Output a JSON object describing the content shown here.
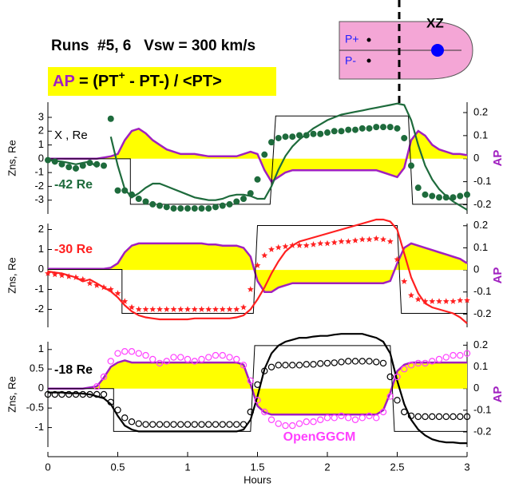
{
  "header": {
    "title": "Runs  #5, 6   Vsw = 300 km/s",
    "formula": {
      "lhs": "AP",
      "rhs_start": " = (PT",
      "sup": "+",
      "rhs_end": " - PT-) / <PT>"
    }
  },
  "inset": {
    "plane": "XZ",
    "p_plus": "P+",
    "p_minus": "P-"
  },
  "chart_data": [
    {
      "type": "line",
      "label": "-42 Re",
      "label_color": "#1e6b3c",
      "annotation": "X , Re",
      "ylabel": "Zns, Re",
      "y2label": "AP",
      "xlim": [
        0,
        3
      ],
      "ylim": [
        -4,
        4.1
      ],
      "yticks": [
        -3,
        -2,
        -1,
        0,
        1,
        2,
        3
      ],
      "y2lim": [
        -0.24,
        0.245
      ],
      "y2ticks": [
        -0.2,
        -0.1,
        0,
        0.1,
        0.2
      ],
      "x": [
        0,
        0.05,
        0.1,
        0.15,
        0.2,
        0.25,
        0.3,
        0.35,
        0.4,
        0.45,
        0.5,
        0.55,
        0.6,
        0.65,
        0.7,
        0.75,
        0.8,
        0.85,
        0.9,
        0.95,
        1,
        1.05,
        1.1,
        1.15,
        1.2,
        1.25,
        1.3,
        1.35,
        1.4,
        1.45,
        1.5,
        1.55,
        1.6,
        1.65,
        1.7,
        1.75,
        1.8,
        1.85,
        1.9,
        1.95,
        2,
        2.05,
        2.1,
        2.15,
        2.2,
        2.25,
        2.3,
        2.35,
        2.4,
        2.45,
        2.5,
        2.55,
        2.6,
        2.65,
        2.7,
        2.75,
        2.8,
        2.85,
        2.9,
        2.95,
        3
      ],
      "series": [
        {
          "style": "area",
          "axis": "y2",
          "color": "#a020c0",
          "fill": "#ffff00",
          "values": [
            0,
            0,
            0,
            0,
            0,
            0,
            0,
            0,
            0.005,
            0.01,
            0.02,
            0.08,
            0.12,
            0.13,
            0.11,
            0.08,
            0.06,
            0.04,
            0.03,
            0.02,
            0.02,
            0.02,
            0.015,
            0.01,
            0.01,
            0.01,
            0.01,
            0.01,
            0.02,
            0.03,
            0.02,
            -0.05,
            -0.1,
            -0.08,
            -0.06,
            -0.05,
            -0.05,
            -0.05,
            -0.05,
            -0.05,
            -0.05,
            -0.05,
            -0.05,
            -0.05,
            -0.05,
            -0.05,
            -0.05,
            -0.05,
            -0.06,
            -0.07,
            -0.08,
            -0.04,
            0.08,
            0.12,
            0.1,
            0.06,
            0.04,
            0.03,
            0.02,
            0.02,
            0.015
          ]
        },
        {
          "style": "step",
          "color": "#000000",
          "x": [
            0,
            0.59,
            0.59,
            1.59,
            1.63,
            2.58,
            2.61,
            3
          ],
          "values": [
            0,
            0,
            -3.3,
            -3.3,
            3.1,
            3.1,
            -3.3,
            -3.3
          ]
        },
        {
          "style": "line",
          "color": "#1e6b3c",
          "values": [
            -0.1,
            -0.15,
            -0.2,
            -0.3,
            -0.4,
            -0.3,
            -0.2,
            -0.6,
            null,
            1.6,
            -0.5,
            -2.2,
            -2.8,
            -2.5,
            -2.1,
            -1.8,
            -1.8,
            -2.0,
            -2.2,
            -2.4,
            -2.6,
            -2.8,
            -2.9,
            -3.0,
            -3.0,
            -2.9,
            -2.7,
            -2.6,
            -2.6,
            -2.7,
            -2.9,
            -2.9,
            -2.0,
            -0.8,
            0.2,
            0.9,
            1.4,
            1.8,
            2.2,
            2.5,
            2.8,
            3.0,
            3.2,
            3.3,
            3.4,
            3.5,
            3.6,
            3.7,
            3.8,
            3.9,
            4.0,
            3.9,
            2.8,
            1.0,
            -0.5,
            -1.5,
            -2.2,
            -2.7,
            -3.1,
            -3.4,
            -3.7
          ]
        },
        {
          "style": "markers",
          "marker": "circle",
          "filled": true,
          "color": "#1e6b3c",
          "values": [
            -0.1,
            -0.2,
            -0.4,
            -0.6,
            -0.7,
            -0.5,
            -0.3,
            -0.4,
            -0.5,
            2.9,
            -2.3,
            -2.3,
            -2.6,
            -2.9,
            -3.1,
            -3.3,
            -3.4,
            -3.5,
            -3.6,
            -3.6,
            -3.6,
            -3.6,
            -3.6,
            -3.6,
            -3.5,
            -3.4,
            -3.3,
            -3.1,
            -2.9,
            -2.5,
            -1.5,
            0.3,
            1.2,
            1.5,
            1.6,
            1.6,
            1.7,
            1.7,
            1.8,
            1.8,
            1.9,
            2.0,
            2.0,
            2.1,
            2.1,
            2.2,
            2.2,
            2.3,
            2.3,
            2.3,
            2.2,
            1.5,
            -0.5,
            -2.1,
            -2.6,
            -2.7,
            -2.8,
            -2.8,
            -2.8,
            -2.7,
            -2.6
          ]
        }
      ]
    },
    {
      "type": "line",
      "label": "-30 Re",
      "label_color": "#ff2020",
      "ylabel": "Zns, Re",
      "y2label": "AP",
      "xlim": [
        0,
        3
      ],
      "ylim": [
        -2.9,
        2.3
      ],
      "yticks": [
        -2,
        -1,
        0,
        1,
        2
      ],
      "y2lim": [
        -0.26,
        0.21
      ],
      "y2ticks": [
        -0.2,
        -0.1,
        0,
        0.1,
        0.2
      ],
      "x": [
        0,
        0.05,
        0.1,
        0.15,
        0.2,
        0.25,
        0.3,
        0.35,
        0.4,
        0.45,
        0.5,
        0.55,
        0.6,
        0.65,
        0.7,
        0.75,
        0.8,
        0.85,
        0.9,
        0.95,
        1,
        1.05,
        1.1,
        1.15,
        1.2,
        1.25,
        1.3,
        1.35,
        1.4,
        1.45,
        1.5,
        1.55,
        1.6,
        1.65,
        1.7,
        1.75,
        1.8,
        1.85,
        1.9,
        1.95,
        2,
        2.05,
        2.1,
        2.15,
        2.2,
        2.25,
        2.3,
        2.35,
        2.4,
        2.45,
        2.5,
        2.55,
        2.6,
        2.65,
        2.7,
        2.75,
        2.8,
        2.85,
        2.9,
        2.95,
        3
      ],
      "series": [
        {
          "style": "area",
          "axis": "y2",
          "color": "#a020c0",
          "fill": "#ffff00",
          "values": [
            0.005,
            0.005,
            0.005,
            0.005,
            0.005,
            0.005,
            0.005,
            0.005,
            0.005,
            0.01,
            0.03,
            0.08,
            0.11,
            0.12,
            0.12,
            0.12,
            0.12,
            0.12,
            0.12,
            0.12,
            0.12,
            0.12,
            0.12,
            0.115,
            0.115,
            0.11,
            0.11,
            0.11,
            0.1,
            0.06,
            -0.05,
            -0.1,
            -0.1,
            -0.08,
            -0.07,
            -0.06,
            -0.06,
            -0.06,
            -0.06,
            -0.06,
            -0.06,
            -0.06,
            -0.06,
            -0.06,
            -0.06,
            -0.06,
            -0.06,
            -0.06,
            -0.06,
            -0.05,
            0.03,
            0.1,
            0.12,
            0.11,
            0.1,
            0.09,
            0.08,
            0.07,
            0.06,
            0.05,
            0.03
          ]
        },
        {
          "style": "step",
          "color": "#000000",
          "x": [
            0,
            0.53,
            0.53,
            1.47,
            1.5,
            2.5,
            2.53,
            3
          ],
          "values": [
            0,
            0,
            -2.2,
            -2.2,
            2.2,
            2.2,
            -2.2,
            -2.2
          ]
        },
        {
          "style": "line",
          "color": "#ff2020",
          "values": [
            -0.1,
            -0.15,
            -0.2,
            -0.3,
            -0.4,
            -0.6,
            -0.5,
            -0.7,
            -0.9,
            -1.1,
            -1.4,
            -1.8,
            -2.1,
            -2.3,
            -2.4,
            -2.45,
            -2.5,
            -2.5,
            -2.5,
            -2.5,
            -2.5,
            -2.45,
            -2.45,
            -2.45,
            -2.45,
            -2.45,
            -2.45,
            -2.4,
            -2.3,
            -2.0,
            -1.5,
            -0.9,
            -0.2,
            0.4,
            0.9,
            1.2,
            1.4,
            1.5,
            1.6,
            1.7,
            1.8,
            1.9,
            2.0,
            2.1,
            2.2,
            2.3,
            2.4,
            2.5,
            2.5,
            2.4,
            2.0,
            0.8,
            -0.4,
            -1.2,
            -1.7,
            -1.9,
            -2.0,
            -2.1,
            -2.2,
            -2.4,
            -2.7
          ]
        },
        {
          "style": "markers",
          "marker": "star",
          "filled": true,
          "color": "#ff2020",
          "values": [
            -0.2,
            -0.25,
            -0.3,
            -0.35,
            -0.4,
            -0.5,
            -0.7,
            -0.8,
            -0.9,
            -1.0,
            -1.2,
            -1.6,
            -1.9,
            -2.0,
            -2.0,
            -2.0,
            -2.0,
            -2.0,
            -2.0,
            -2.0,
            -2.0,
            -2.0,
            -2.0,
            -2.0,
            -2.0,
            -2.0,
            -2.0,
            -2.0,
            -1.9,
            -1.0,
            0.2,
            0.7,
            1.0,
            1.1,
            1.15,
            1.2,
            1.2,
            1.2,
            1.25,
            1.3,
            1.3,
            1.35,
            1.4,
            1.4,
            1.45,
            1.5,
            1.5,
            1.55,
            1.5,
            1.4,
            0.5,
            -0.6,
            -1.3,
            -1.5,
            -1.6,
            -1.6,
            -1.6,
            -1.6,
            -1.6,
            -1.55,
            -1.55
          ]
        }
      ]
    },
    {
      "type": "line",
      "label": "-18 Re",
      "label_color": "#000000",
      "ylabel": "Zns, Re",
      "y2label": "AP",
      "xlabel": "Hours",
      "xlim": [
        0,
        3
      ],
      "xticks": [
        0,
        0.5,
        1,
        1.5,
        2,
        2.5,
        3
      ],
      "ylim": [
        -1.5,
        1.2
      ],
      "yticks": [
        -1,
        -0.5,
        0,
        0.5,
        1
      ],
      "y2lim": [
        -0.27,
        0.216
      ],
      "y2ticks": [
        -0.2,
        -0.1,
        0,
        0.1,
        0.2
      ],
      "x": [
        0,
        0.05,
        0.1,
        0.15,
        0.2,
        0.25,
        0.3,
        0.35,
        0.4,
        0.45,
        0.5,
        0.55,
        0.6,
        0.65,
        0.7,
        0.75,
        0.8,
        0.85,
        0.9,
        0.95,
        1,
        1.05,
        1.1,
        1.15,
        1.2,
        1.25,
        1.3,
        1.35,
        1.4,
        1.45,
        1.5,
        1.55,
        1.6,
        1.65,
        1.7,
        1.75,
        1.8,
        1.85,
        1.9,
        1.95,
        2,
        2.05,
        2.1,
        2.15,
        2.2,
        2.25,
        2.3,
        2.35,
        2.4,
        2.45,
        2.5,
        2.55,
        2.6,
        2.65,
        2.7,
        2.75,
        2.8,
        2.85,
        2.9,
        2.95,
        3
      ],
      "series": [
        {
          "style": "area",
          "axis": "y2",
          "color": "#a020c0",
          "fill": "#ffff00",
          "values": [
            0,
            0,
            0,
            0,
            0,
            0,
            0.005,
            0.01,
            0.05,
            0.1,
            0.12,
            0.13,
            0.12,
            0.12,
            0.12,
            0.12,
            0.12,
            0.12,
            0.12,
            0.12,
            0.12,
            0.12,
            0.12,
            0.12,
            0.12,
            0.12,
            0.12,
            0.12,
            0.11,
            0.02,
            -0.08,
            -0.11,
            -0.12,
            -0.12,
            -0.12,
            -0.12,
            -0.12,
            -0.12,
            -0.12,
            -0.12,
            -0.12,
            -0.12,
            -0.12,
            -0.12,
            -0.12,
            -0.12,
            -0.12,
            -0.12,
            -0.1,
            -0.02,
            0.08,
            0.11,
            0.12,
            0.12,
            0.12,
            0.12,
            0.12,
            0.12,
            0.12,
            0.12,
            0.12
          ]
        },
        {
          "style": "step",
          "color": "#000000",
          "x": [
            0,
            0.47,
            0.47,
            1.45,
            1.48,
            2.45,
            2.48,
            3
          ],
          "values": [
            0,
            0,
            -1.1,
            -1.1,
            1.1,
            1.1,
            -1.1,
            -1.1
          ]
        },
        {
          "style": "line",
          "color": "#000000",
          "values": [
            -0.1,
            -0.1,
            -0.1,
            -0.12,
            -0.12,
            -0.13,
            -0.15,
            -0.2,
            -0.25,
            -0.4,
            -0.7,
            -0.95,
            -1.05,
            -1.1,
            -1.1,
            -1.1,
            -1.1,
            -1.1,
            -1.1,
            -1.1,
            -1.1,
            -1.1,
            -1.1,
            -1.1,
            -1.1,
            -1.1,
            -1.1,
            -1.1,
            -1.05,
            -0.8,
            -0.2,
            0.5,
            0.9,
            1.1,
            1.2,
            1.25,
            1.3,
            1.3,
            1.33,
            1.35,
            1.35,
            1.38,
            1.4,
            1.4,
            1.4,
            1.4,
            1.35,
            1.3,
            1.2,
            0.9,
            0.2,
            -0.4,
            -0.8,
            -1.05,
            -1.2,
            -1.3,
            -1.35,
            -1.38,
            -1.38,
            -1.4,
            -1.4
          ]
        },
        {
          "style": "markers",
          "marker": "circle",
          "filled": false,
          "color": "#000000",
          "values": [
            -0.15,
            -0.15,
            -0.15,
            -0.15,
            -0.15,
            -0.15,
            -0.15,
            -0.15,
            -0.15,
            -0.35,
            -0.55,
            -0.75,
            -0.85,
            -0.9,
            -0.92,
            -0.92,
            -0.92,
            -0.92,
            -0.92,
            -0.92,
            -0.92,
            -0.92,
            -0.92,
            -0.92,
            -0.92,
            -0.92,
            -0.92,
            -0.92,
            -0.92,
            -0.6,
            0.1,
            0.45,
            0.55,
            0.6,
            0.6,
            0.6,
            0.6,
            0.62,
            0.62,
            0.64,
            0.65,
            0.66,
            0.68,
            0.7,
            0.7,
            0.7,
            0.7,
            0.68,
            0.65,
            0.3,
            -0.3,
            -0.6,
            -0.7,
            -0.72,
            -0.72,
            -0.72,
            -0.72,
            -0.72,
            -0.72,
            -0.72,
            -0.72
          ]
        },
        {
          "style": "markers",
          "marker": "circle",
          "filled": false,
          "name": "OpenGGCM",
          "color": "#ff40ff",
          "values": [
            null,
            null,
            null,
            null,
            null,
            null,
            null,
            0.05,
            0.3,
            0.7,
            0.9,
            0.95,
            0.95,
            0.9,
            0.85,
            0.75,
            0.65,
            0.7,
            0.8,
            0.8,
            0.75,
            0.7,
            0.75,
            0.8,
            0.85,
            0.85,
            0.8,
            0.75,
            0.6,
            0.2,
            -0.3,
            -0.6,
            -0.8,
            -0.9,
            -0.95,
            -0.95,
            -0.9,
            -0.85,
            -0.85,
            -0.8,
            -0.75,
            -0.75,
            -0.7,
            -0.75,
            -0.8,
            -0.75,
            -0.7,
            -0.75,
            -0.6,
            -0.2,
            0.3,
            0.5,
            0.6,
            0.65,
            0.65,
            0.7,
            0.75,
            0.8,
            0.85,
            0.85,
            0.9
          ]
        }
      ]
    }
  ]
}
